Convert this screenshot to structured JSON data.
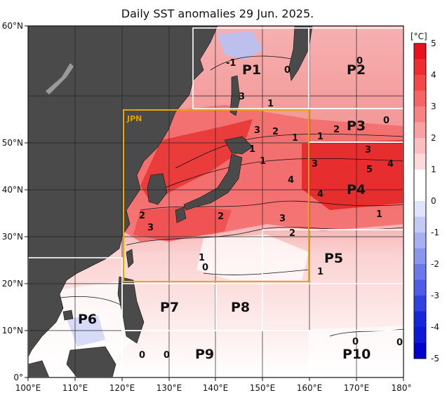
{
  "title": "Daily SST anomalies 29 Jun. 2025.",
  "x_ticks": [
    "100°E",
    "110°E",
    "120°E",
    "130°E",
    "140°E",
    "150°E",
    "160°E",
    "170°E",
    "180°"
  ],
  "y_ticks": [
    "0°",
    "10°N",
    "20°N",
    "30°N",
    "40°N",
    "50°N",
    "60°N"
  ],
  "colorbar": {
    "unit": "[°C]",
    "labels": [
      "5",
      "4",
      "3",
      "2",
      "1",
      "0",
      "-1",
      "-2",
      "-3",
      "-4",
      "-5"
    ],
    "colors": [
      "#e8101a",
      "#ee2d2f",
      "#f24848",
      "#f56565",
      "#f78383",
      "#f9a0a0",
      "#fbbebe",
      "#fdd9d9",
      "#ffffff",
      "#ffffff",
      "#dfe3fb",
      "#c3caf7",
      "#a6b0f2",
      "#8a96ee",
      "#6b7aea",
      "#4d5ee5",
      "#2f42e0",
      "#1428da",
      "#0b18d6",
      "#0000cc"
    ]
  },
  "colors": {
    "land": "#4a4a4a",
    "box": "#ffffff",
    "jpn_box": "#e8a600",
    "grid": "#222222"
  },
  "regions": [
    "P1",
    "P2",
    "P3",
    "P4",
    "P5",
    "P6",
    "P7",
    "P8",
    "P9",
    "P10"
  ],
  "jpn_label": "JPN",
  "contour_labels": [
    "-1",
    "0",
    "3",
    "1",
    "3",
    "1",
    "1",
    "2",
    "1",
    "4",
    "4",
    "2",
    "3",
    "3",
    "5",
    "4",
    "3",
    "2",
    "1",
    "1",
    "2",
    "3",
    "2",
    "1",
    "1",
    "0",
    "0",
    "0",
    "0",
    "0",
    "0",
    "0"
  ]
}
